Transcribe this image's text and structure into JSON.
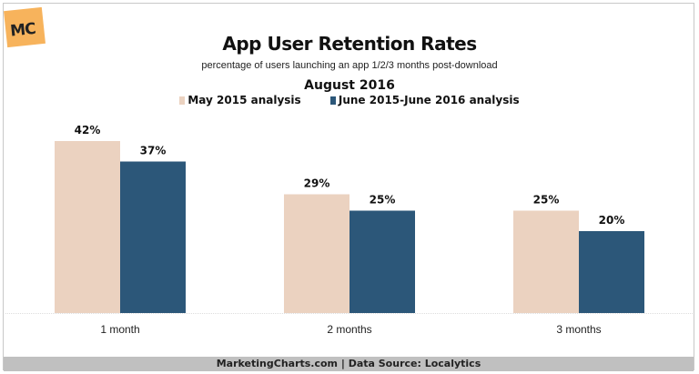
{
  "chart_data": {
    "type": "bar",
    "title": "App User Retention Rates",
    "subtitle": "percentage of users launching an app 1/2/3 months post-download",
    "date": "August 2016",
    "categories": [
      "1 month",
      "2 months",
      "3 months"
    ],
    "series": [
      {
        "name": "May 2015 analysis",
        "color": "#ebd2c0",
        "values": [
          42,
          29,
          25
        ]
      },
      {
        "name": "June 2015-June 2016 analysis",
        "color": "#2c5779",
        "values": [
          37,
          25,
          20
        ]
      }
    ],
    "value_suffix": "%",
    "ylim": [
      0,
      50
    ],
    "grid": false,
    "legend": "top-center",
    "xlabel": "",
    "ylabel": ""
  },
  "logo_text": "MC",
  "footer": "MarketingCharts.com | Data Source: Localytics"
}
